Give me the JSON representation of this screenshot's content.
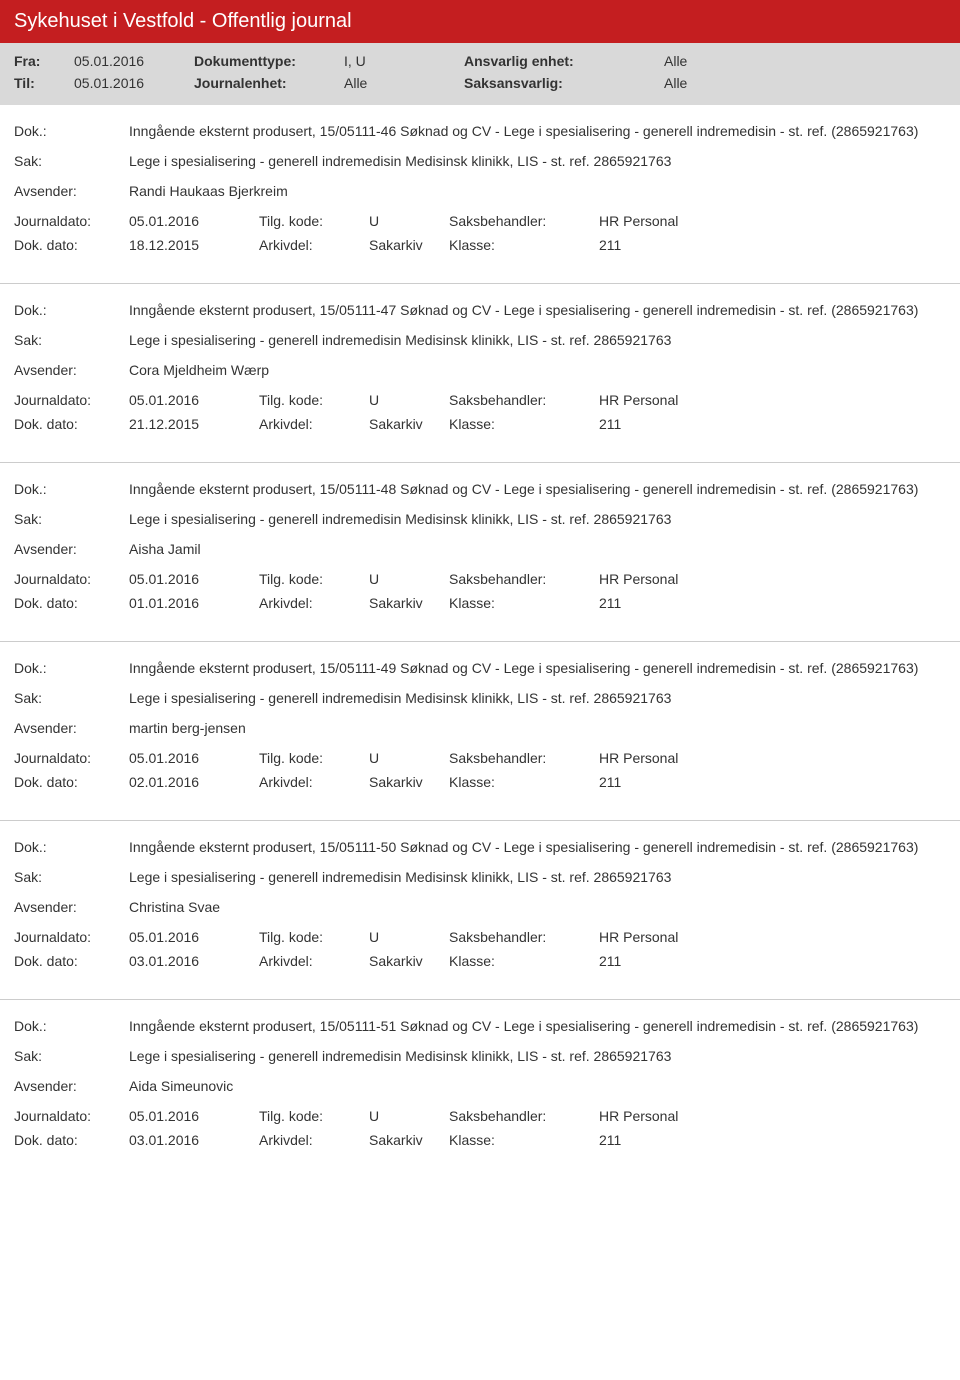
{
  "header": {
    "title": "Sykehuset i Vestfold - Offentlig journal"
  },
  "meta": {
    "fra_label": "Fra:",
    "fra_value": "05.01.2016",
    "til_label": "Til:",
    "til_value": "05.01.2016",
    "doktype_label": "Dokumenttype:",
    "doktype_value": "I, U",
    "journalenhet_label": "Journalenhet:",
    "journalenhet_value": "Alle",
    "ansvarlig_label": "Ansvarlig enhet:",
    "ansvarlig_value": "Alle",
    "saksansvarlig_label": "Saksansvarlig:",
    "saksansvarlig_value": "Alle"
  },
  "labels": {
    "dok": "Dok.:",
    "sak": "Sak:",
    "avsender": "Avsender:",
    "journaldato": "Journaldato:",
    "tilgkode": "Tilg. kode:",
    "saksbehandler": "Saksbehandler:",
    "dokdato": "Dok. dato:",
    "arkivdel": "Arkivdel:",
    "klasse": "Klasse:"
  },
  "entries": [
    {
      "dok": "Inngående eksternt produsert, 15/05111-46 Søknad og CV - Lege i spesialisering - generell indremedisin - st. ref. (2865921763)",
      "sak": "Lege i spesialisering - generell indremedisin Medisinsk klinikk, LIS - st. ref. 2865921763",
      "avsender": "Randi Haukaas Bjerkreim",
      "journaldato": "05.01.2016",
      "tilgkode": "U",
      "saksbehandler": "HR Personal",
      "dokdato": "18.12.2015",
      "arkivdel": "Sakarkiv",
      "klasse": "211"
    },
    {
      "dok": "Inngående eksternt produsert, 15/05111-47 Søknad og CV - Lege i spesialisering - generell indremedisin - st. ref. (2865921763)",
      "sak": "Lege i spesialisering - generell indremedisin Medisinsk klinikk, LIS - st. ref. 2865921763",
      "avsender": "Cora Mjeldheim Wærp",
      "journaldato": "05.01.2016",
      "tilgkode": "U",
      "saksbehandler": "HR Personal",
      "dokdato": "21.12.2015",
      "arkivdel": "Sakarkiv",
      "klasse": "211"
    },
    {
      "dok": "Inngående eksternt produsert, 15/05111-48 Søknad og CV - Lege i spesialisering - generell indremedisin - st. ref. (2865921763)",
      "sak": "Lege i spesialisering - generell indremedisin Medisinsk klinikk, LIS - st. ref. 2865921763",
      "avsender": "Aisha Jamil",
      "journaldato": "05.01.2016",
      "tilgkode": "U",
      "saksbehandler": "HR Personal",
      "dokdato": "01.01.2016",
      "arkivdel": "Sakarkiv",
      "klasse": "211"
    },
    {
      "dok": "Inngående eksternt produsert, 15/05111-49 Søknad og CV - Lege i spesialisering - generell indremedisin - st. ref. (2865921763)",
      "sak": "Lege i spesialisering - generell indremedisin Medisinsk klinikk, LIS - st. ref. 2865921763",
      "avsender": "martin berg-jensen",
      "journaldato": "05.01.2016",
      "tilgkode": "U",
      "saksbehandler": "HR Personal",
      "dokdato": "02.01.2016",
      "arkivdel": "Sakarkiv",
      "klasse": "211"
    },
    {
      "dok": "Inngående eksternt produsert, 15/05111-50 Søknad og CV - Lege i spesialisering - generell indremedisin - st. ref. (2865921763)",
      "sak": "Lege i spesialisering - generell indremedisin Medisinsk klinikk, LIS - st. ref. 2865921763",
      "avsender": "Christina Svae",
      "journaldato": "05.01.2016",
      "tilgkode": "U",
      "saksbehandler": "HR Personal",
      "dokdato": "03.01.2016",
      "arkivdel": "Sakarkiv",
      "klasse": "211"
    },
    {
      "dok": "Inngående eksternt produsert, 15/05111-51 Søknad og CV - Lege i spesialisering - generell indremedisin - st. ref. (2865921763)",
      "sak": "Lege i spesialisering - generell indremedisin Medisinsk klinikk, LIS - st. ref. 2865921763",
      "avsender": "Aida Simeunovic",
      "journaldato": "05.01.2016",
      "tilgkode": "U",
      "saksbehandler": "HR Personal",
      "dokdato": "03.01.2016",
      "arkivdel": "Sakarkiv",
      "klasse": "211"
    }
  ]
}
